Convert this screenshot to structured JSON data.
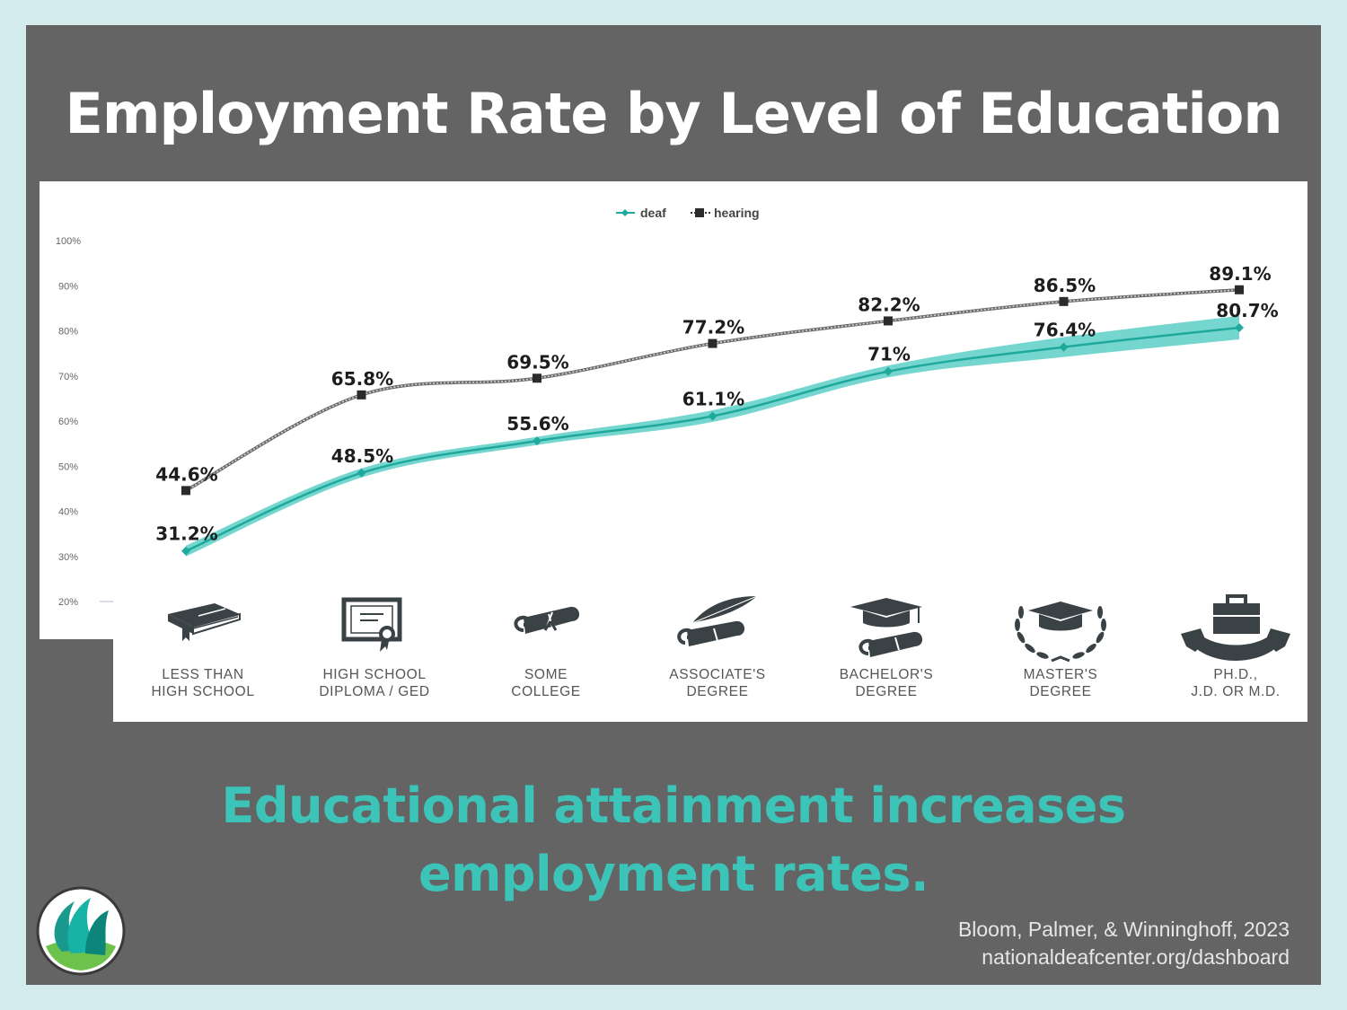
{
  "title": "Employment Rate by Level of Education",
  "subtitle": "Educational attainment increases\nemployment rates.",
  "source": {
    "citation": "Bloom, Palmer, & Winninghoff, 2023",
    "url": "nationaldeafcenter.org/dashboard"
  },
  "colors": {
    "deaf": "#1fa99c",
    "deaf_band": "#5ccfc5",
    "hearing": "#2b2b2b",
    "accent": "#3dc4b9"
  },
  "categories": [
    {
      "label": "LESS THAN\nHIGH SCHOOL",
      "icon": "book-icon"
    },
    {
      "label": "HIGH SCHOOL\nDIPLOMA / GED",
      "icon": "diploma-certificate-icon"
    },
    {
      "label": "SOME\nCOLLEGE",
      "icon": "scroll-icon"
    },
    {
      "label": "ASSOCIATE'S\nDEGREE",
      "icon": "quill-scroll-icon"
    },
    {
      "label": "BACHELOR'S\nDEGREE",
      "icon": "graduation-cap-scroll-icon"
    },
    {
      "label": "MASTER'S\nDEGREE",
      "icon": "laurel-cap-icon"
    },
    {
      "label": "PH.D.,\nJ.D. OR M.D.",
      "icon": "briefcase-banner-icon"
    }
  ],
  "chart_data": {
    "type": "line",
    "categories": [
      "LESS THAN HIGH SCHOOL",
      "HIGH SCHOOL DIPLOMA / GED",
      "SOME COLLEGE",
      "ASSOCIATE'S DEGREE",
      "BACHELOR'S DEGREE",
      "MASTER'S DEGREE",
      "PH.D., J.D. OR M.D."
    ],
    "series": [
      {
        "name": "deaf",
        "values": [
          31.2,
          48.5,
          55.6,
          61.1,
          71,
          76.4,
          80.7
        ],
        "labels": [
          "31.2%",
          "48.5%",
          "55.6%",
          "61.1%",
          "71%",
          "76.4%",
          "80.7%"
        ],
        "band_half_width": [
          1.2,
          1.0,
          0.9,
          1.3,
          1.3,
          2.2,
          2.6
        ],
        "marker": "diamond"
      },
      {
        "name": "hearing",
        "values": [
          44.6,
          65.8,
          69.5,
          77.2,
          82.2,
          86.5,
          89.1
        ],
        "labels": [
          "44.6%",
          "65.8%",
          "69.5%",
          "77.2%",
          "82.2%",
          "86.5%",
          "89.1%"
        ],
        "marker": "square"
      }
    ],
    "y_ticks": [
      "20%",
      "30%",
      "40%",
      "50%",
      "60%",
      "70%",
      "80%",
      "90%",
      "100%"
    ],
    "ylim": [
      20,
      100
    ],
    "legend": "top-center",
    "grid": false
  }
}
